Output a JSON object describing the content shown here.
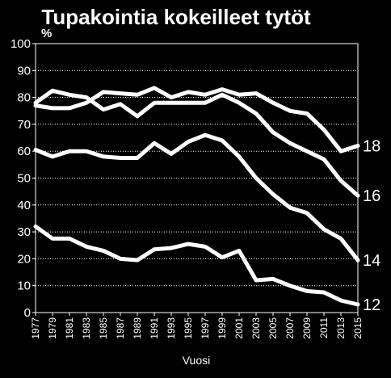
{
  "chart_data": {
    "type": "line",
    "title": "Tupakointia kokeilleet tytöt",
    "unit_label": "%",
    "xlabel": "Vuosi",
    "ylabel": "",
    "ylim": [
      0,
      100
    ],
    "y_ticks": [
      0,
      10,
      20,
      30,
      40,
      50,
      60,
      70,
      80,
      90,
      100
    ],
    "x_tick_labels": [
      "1977",
      "1979",
      "1981",
      "1983",
      "1985",
      "1987",
      "1989",
      "1991",
      "1993",
      "1995",
      "1997",
      "1999",
      "2001",
      "2003",
      "2005",
      "2007",
      "2009",
      "2011",
      "2013",
      "2015"
    ],
    "grid": true,
    "x": [
      1977,
      1979,
      1981,
      1983,
      1985,
      1987,
      1989,
      1991,
      1993,
      1995,
      1997,
      1999,
      2001,
      2003,
      2005,
      2007,
      2009,
      2011,
      2013,
      2015
    ],
    "series": [
      {
        "name": "18",
        "values": [
          77,
          76,
          76,
          78,
          82,
          81.5,
          81,
          83.5,
          80,
          82,
          81,
          83,
          81,
          81.5,
          78,
          75,
          74,
          68,
          60,
          62
        ]
      },
      {
        "name": "16",
        "values": [
          78,
          82.5,
          81,
          80,
          75.5,
          77.5,
          73,
          78,
          78,
          78,
          78,
          81,
          78,
          74,
          67,
          63,
          60,
          57,
          49,
          43.5
        ]
      },
      {
        "name": "14",
        "values": [
          60.5,
          58,
          60,
          60,
          58,
          57.5,
          57.5,
          63,
          59,
          63.5,
          66,
          64,
          58,
          50,
          44,
          39,
          37,
          31,
          27.5,
          19.5
        ]
      },
      {
        "name": "12",
        "values": [
          32,
          27.5,
          27.5,
          24.5,
          23,
          20,
          19.5,
          23.5,
          24,
          25.5,
          24.5,
          20.5,
          23,
          12,
          12.5,
          10,
          8,
          7.5,
          4.5,
          3
        ]
      }
    ],
    "colors": {
      "background": "#000000",
      "line": "#ffffff",
      "grid": "#ffffff",
      "text": "#ffffff"
    }
  }
}
